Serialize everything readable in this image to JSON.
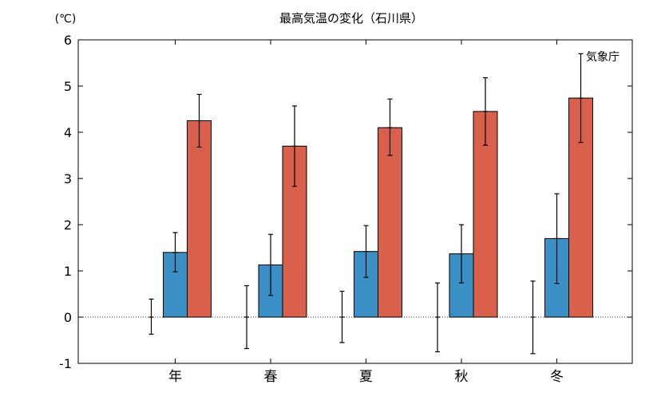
{
  "chart_data": {
    "type": "bar",
    "title": "最高気温の変化（石川県）",
    "unit_label": "(℃)",
    "source_label": "気象庁",
    "categories": [
      "年",
      "春",
      "夏",
      "秋",
      "冬"
    ],
    "ylim": [
      -1,
      6
    ],
    "yticks": [
      -1,
      0,
      1,
      2,
      3,
      4,
      5,
      6
    ],
    "grid": false,
    "reference_line_y": 0,
    "series": [
      {
        "color": "#3a8fc4",
        "values": [
          0,
          0,
          0,
          0,
          0
        ],
        "error_low": [
          -0.37,
          -0.68,
          -0.55,
          -0.75,
          -0.79
        ],
        "error_high": [
          0.39,
          0.68,
          0.56,
          0.74,
          0.78
        ],
        "draw_bar": false
      },
      {
        "color": "#3a8fc4",
        "values": [
          1.4,
          1.13,
          1.42,
          1.37,
          1.7
        ],
        "error_low": [
          0.98,
          0.47,
          0.86,
          0.74,
          0.73
        ],
        "error_high": [
          1.83,
          1.79,
          1.98,
          2.0,
          2.67
        ]
      },
      {
        "color": "#d9604b",
        "values": [
          4.25,
          3.7,
          4.1,
          4.45,
          4.74
        ],
        "error_low": [
          3.68,
          2.83,
          3.5,
          3.72,
          3.78
        ],
        "error_high": [
          4.82,
          4.57,
          4.72,
          5.18,
          5.7
        ]
      }
    ]
  }
}
